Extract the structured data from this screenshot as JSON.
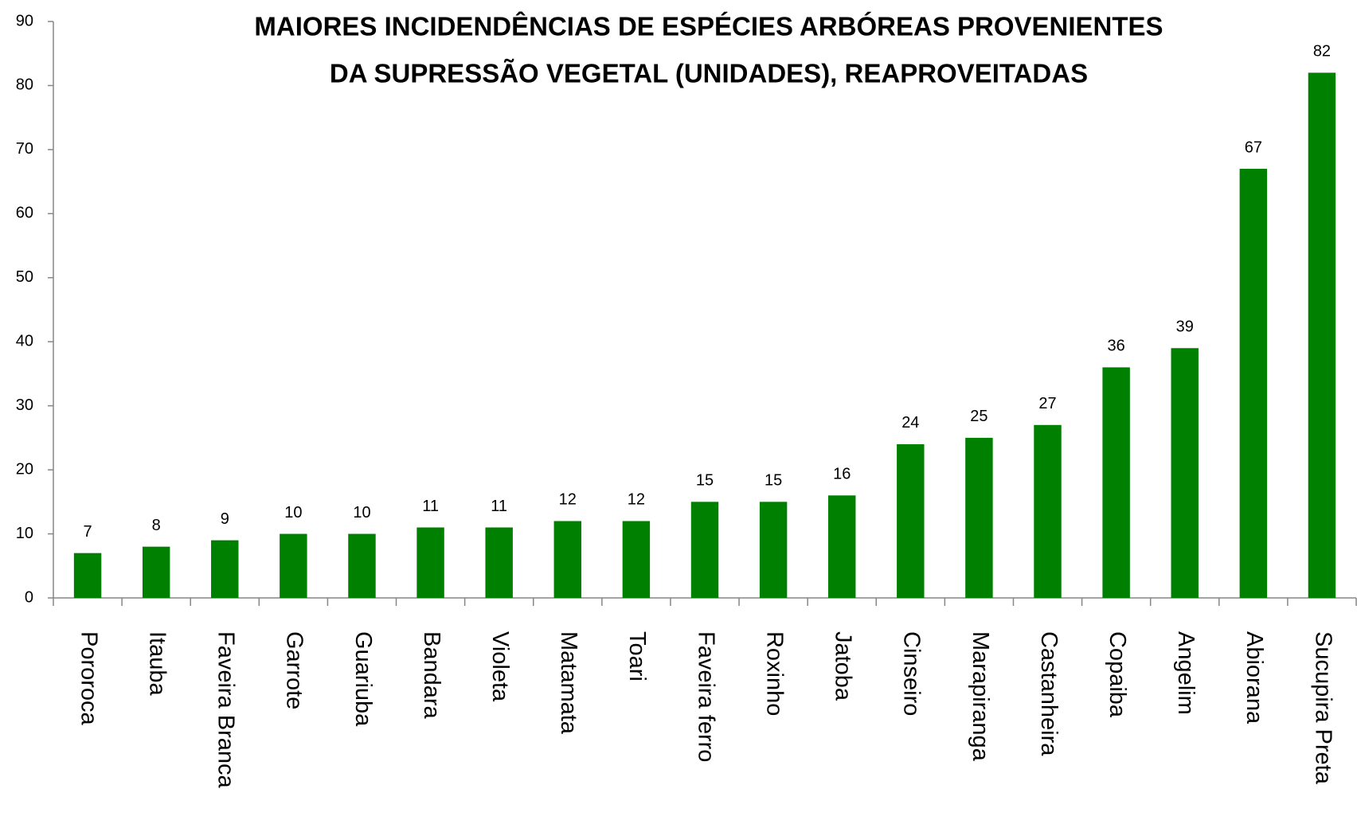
{
  "chart_data": {
    "type": "bar",
    "title": [
      "MAIORES INCIDENDÊNCIAS DE ESPÉCIES ARBÓREAS PROVENIENTES",
      "DA SUPRESSÃO VEGETAL (UNIDADES), REAPROVEITADAS"
    ],
    "categories": [
      "Pororoca",
      "Itauba",
      "Faveira Branca",
      "Garrote",
      "Guariuba",
      "Bandara",
      "Violeta",
      "Matamata",
      "Toari",
      "Faveira ferro",
      "Roxinho",
      "Jatoba",
      "Cinseiro",
      "Marapiranga",
      "Castanheira",
      "Copaiba",
      "Angelim",
      "Abiorana",
      "Sucupira Preta"
    ],
    "values": [
      7,
      8,
      9,
      10,
      10,
      11,
      11,
      12,
      12,
      15,
      15,
      16,
      24,
      25,
      27,
      36,
      39,
      67,
      82
    ],
    "color": "#008000",
    "ylim": [
      0,
      90
    ],
    "yticks": [
      0,
      10,
      20,
      30,
      40,
      50,
      60,
      70,
      80,
      90
    ],
    "grid": false
  }
}
